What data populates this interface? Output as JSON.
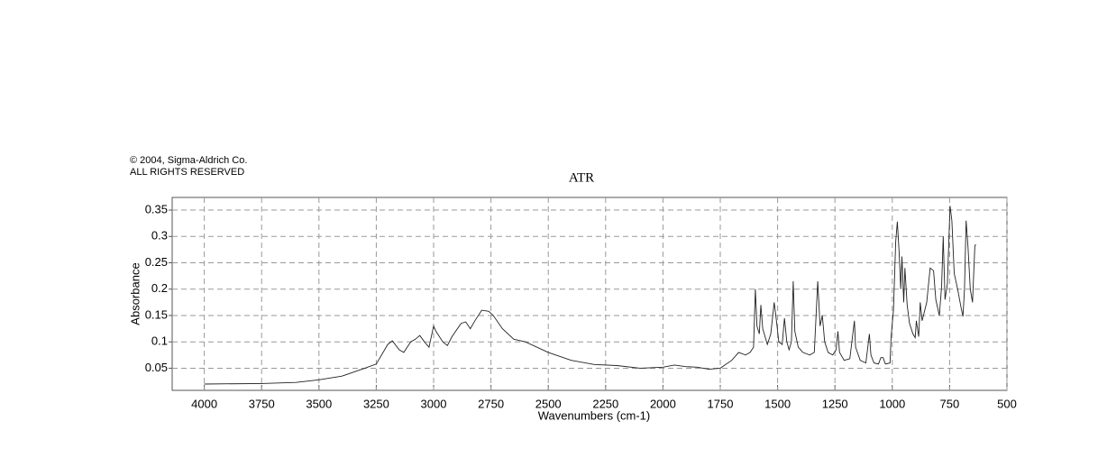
{
  "chart_data": {
    "type": "line",
    "copyright": "© 2004, Sigma-Aldrich Co.",
    "rights": "ALL RIGHTS RESERVED",
    "title": "ATR",
    "x_label": "Wavenumbers (cm-1)",
    "y_label": "Absorbance",
    "xlim": [
      4140,
      500
    ],
    "ylim": [
      0.008,
      0.374
    ],
    "xticks": [
      4000,
      3750,
      3500,
      3250,
      3000,
      2750,
      2500,
      2250,
      2000,
      1750,
      1500,
      1250,
      1000,
      750,
      500
    ],
    "yticks": [
      0.05,
      0.1,
      0.15,
      0.2,
      0.25,
      0.3,
      0.35
    ],
    "grid": true,
    "series": [
      {
        "color": "#222222",
        "x": [
          4000,
          3750,
          3600,
          3500,
          3400,
          3300,
          3250,
          3200,
          3180,
          3150,
          3130,
          3100,
          3080,
          3060,
          3040,
          3020,
          3000,
          2990,
          2960,
          2940,
          2920,
          2880,
          2860,
          2840,
          2820,
          2790,
          2760,
          2740,
          2700,
          2650,
          2600,
          2500,
          2400,
          2300,
          2200,
          2100,
          2000,
          1950,
          1900,
          1850,
          1800,
          1750,
          1700,
          1670,
          1640,
          1620,
          1605,
          1597,
          1590,
          1580,
          1573,
          1565,
          1545,
          1530,
          1515,
          1505,
          1495,
          1480,
          1470,
          1460,
          1450,
          1440,
          1432,
          1425,
          1410,
          1390,
          1360,
          1340,
          1325,
          1315,
          1305,
          1295,
          1280,
          1260,
          1245,
          1237,
          1230,
          1210,
          1185,
          1165,
          1160,
          1140,
          1115,
          1100,
          1093,
          1080,
          1060,
          1050,
          1040,
          1030,
          1010,
          1005,
          995,
          985,
          978,
          970,
          963,
          958,
          950,
          945,
          935,
          925,
          910,
          900,
          895,
          885,
          878,
          870,
          850,
          835,
          820,
          810,
          795,
          785,
          778,
          770,
          760,
          748,
          740,
          730,
          715,
          700,
          692,
          685,
          678,
          670,
          660,
          650,
          640,
          636
        ],
        "values": [
          0.02,
          0.021,
          0.023,
          0.028,
          0.035,
          0.05,
          0.058,
          0.095,
          0.102,
          0.085,
          0.08,
          0.1,
          0.105,
          0.112,
          0.1,
          0.09,
          0.13,
          0.12,
          0.1,
          0.093,
          0.11,
          0.135,
          0.138,
          0.125,
          0.14,
          0.16,
          0.158,
          0.15,
          0.125,
          0.105,
          0.1,
          0.08,
          0.065,
          0.057,
          0.055,
          0.05,
          0.052,
          0.056,
          0.053,
          0.052,
          0.048,
          0.05,
          0.065,
          0.08,
          0.075,
          0.08,
          0.09,
          0.2,
          0.13,
          0.115,
          0.17,
          0.125,
          0.095,
          0.115,
          0.175,
          0.14,
          0.1,
          0.095,
          0.145,
          0.1,
          0.085,
          0.1,
          0.215,
          0.12,
          0.09,
          0.08,
          0.075,
          0.08,
          0.215,
          0.13,
          0.15,
          0.1,
          0.08,
          0.075,
          0.085,
          0.12,
          0.08,
          0.065,
          0.068,
          0.14,
          0.09,
          0.065,
          0.06,
          0.115,
          0.075,
          0.06,
          0.058,
          0.07,
          0.07,
          0.058,
          0.06,
          0.11,
          0.16,
          0.29,
          0.328,
          0.27,
          0.2,
          0.262,
          0.175,
          0.24,
          0.17,
          0.135,
          0.115,
          0.108,
          0.14,
          0.11,
          0.175,
          0.14,
          0.175,
          0.24,
          0.235,
          0.18,
          0.15,
          0.205,
          0.3,
          0.18,
          0.21,
          0.358,
          0.33,
          0.23,
          0.2,
          0.165,
          0.148,
          0.2,
          0.33,
          0.28,
          0.2,
          0.175,
          0.282,
          0.285
        ]
      }
    ]
  }
}
